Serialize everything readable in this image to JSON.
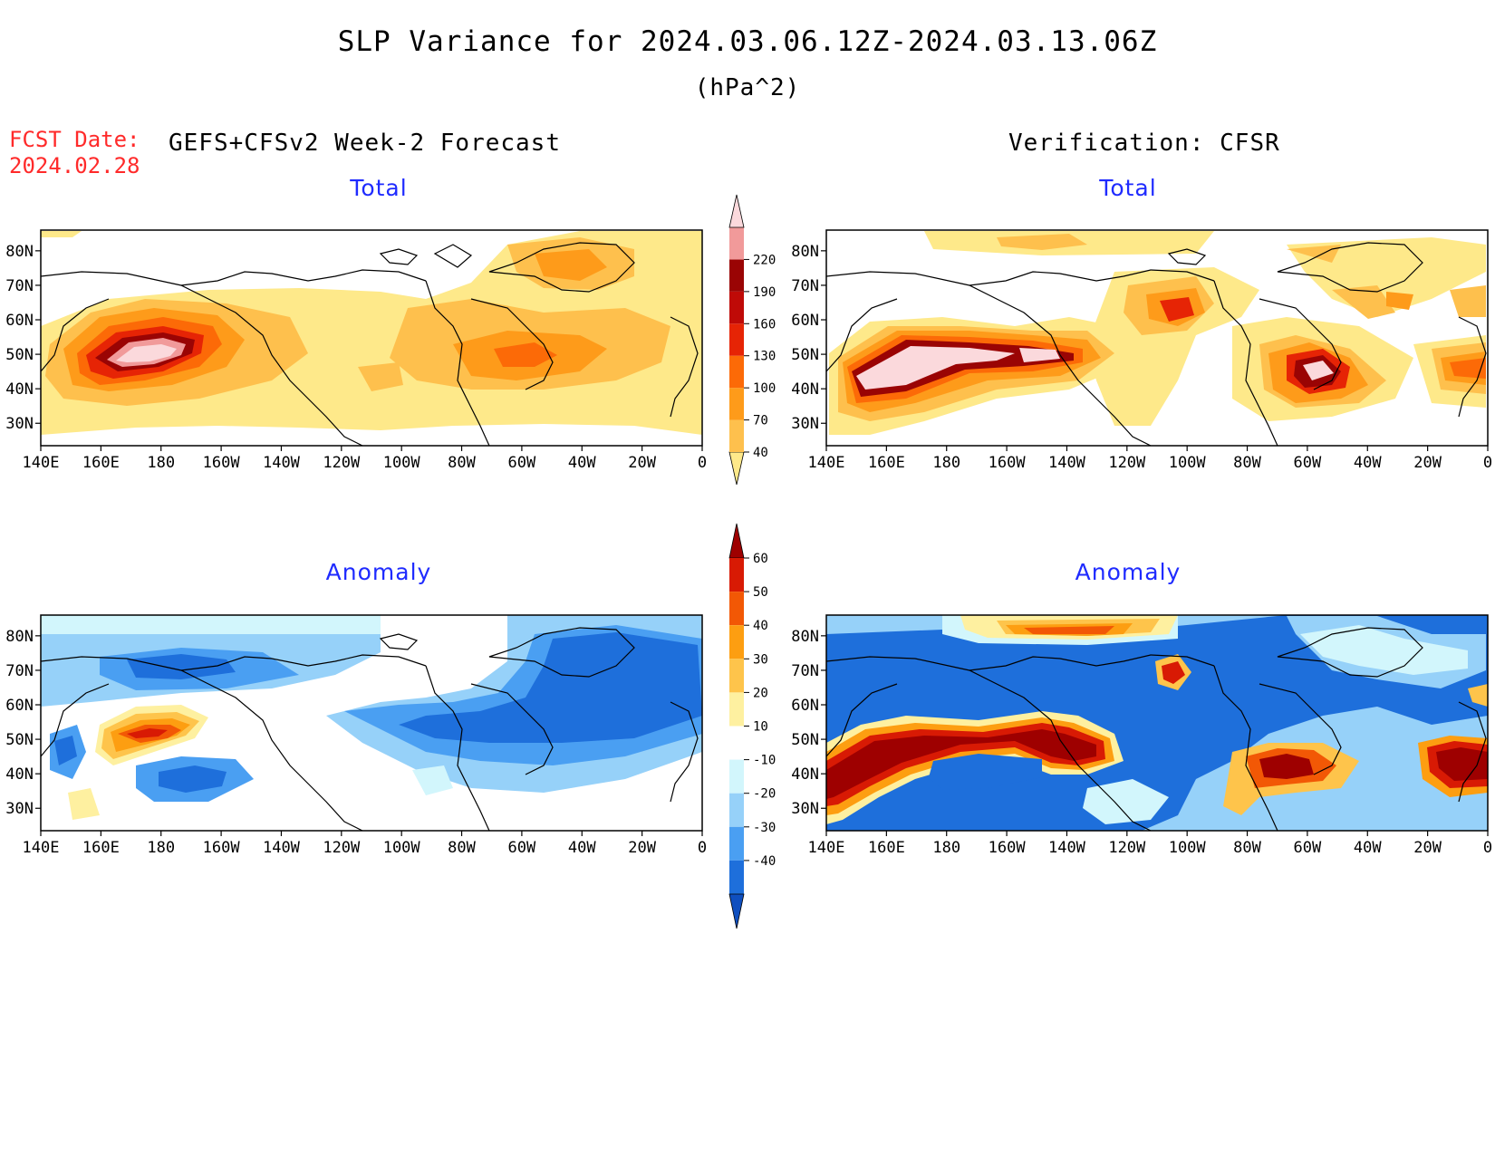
{
  "title": "SLP Variance for 2024.03.06.12Z-2024.03.13.06Z",
  "units": "(hPa^2)",
  "fcst_label": "FCST Date:",
  "fcst_date": "2024.02.28",
  "left_header": "GEFS+CFSv2 Week-2 Forecast",
  "right_header": "Verification: CFSR",
  "panels": {
    "tl": {
      "subtitle": "Total"
    },
    "tr": {
      "subtitle": "Total"
    },
    "bl": {
      "subtitle": "Anomaly"
    },
    "br": {
      "subtitle": "Anomaly"
    }
  },
  "axes": {
    "lon_labels": [
      "140E",
      "160E",
      "180",
      "160W",
      "140W",
      "120W",
      "100W",
      "80W",
      "60W",
      "40W",
      "20W",
      "0"
    ],
    "lat_labels": [
      "30N",
      "40N",
      "50N",
      "60N",
      "70N",
      "80N"
    ]
  },
  "colorbars": {
    "total": {
      "ticks": [
        "40",
        "70",
        "100",
        "130",
        "160",
        "190",
        "220"
      ],
      "colors": [
        "#fee98a",
        "#fec04d",
        "#fe9b1a",
        "#fc6a07",
        "#e62405",
        "#bf0a07",
        "#9a0404",
        "#f19a9a",
        "#fbd9dc"
      ]
    },
    "anomaly": {
      "ticks": [
        "60",
        "50",
        "40",
        "30",
        "20",
        "10",
        "-10",
        "-20",
        "-30",
        "-40"
      ],
      "colors": [
        "#9e0000",
        "#d81a04",
        "#f25805",
        "#fd9e11",
        "#fec44b",
        "#fef0a0",
        "#ffffff",
        "#d2f6fc",
        "#96d1f9",
        "#4a9ff2",
        "#1e6fdb",
        "#0f4fbf"
      ]
    }
  }
}
